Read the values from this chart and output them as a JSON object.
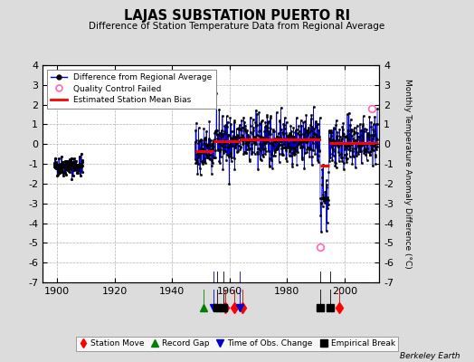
{
  "title": "LAJAS SUBSTATION PUERTO RI",
  "subtitle": "Difference of Station Temperature Data from Regional Average",
  "ylabel": "Monthly Temperature Anomaly Difference (°C)",
  "credit": "Berkeley Earth",
  "ylim": [
    -7,
    4
  ],
  "xlim": [
    1895,
    2012
  ],
  "xticks": [
    1900,
    1920,
    1940,
    1960,
    1980,
    2000
  ],
  "yticks": [
    -7,
    -6,
    -5,
    -4,
    -3,
    -2,
    -1,
    0,
    1,
    2,
    3,
    4
  ],
  "bg_color": "#dcdcdc",
  "plot_bg_color": "#ffffff",
  "grid_color": "#b0b0b0",
  "line_color": "#0000cc",
  "bias_color": "#ff0000",
  "qc_color": "#ff69b4",
  "seed": 42,
  "data_start": 1948.0,
  "data_end": 2011.5,
  "early_data_start": 1899.0,
  "early_data_end": 1909.0,
  "bias_segments": [
    {
      "start": 1948.0,
      "end": 1954.5,
      "value": -0.35
    },
    {
      "start": 1954.5,
      "end": 1963.5,
      "value": 0.15
    },
    {
      "start": 1963.5,
      "end": 1991.5,
      "value": 0.22
    },
    {
      "start": 1991.5,
      "end": 1994.5,
      "value": -1.1
    },
    {
      "start": 1994.5,
      "end": 2011.5,
      "value": 0.05
    }
  ],
  "event_markers": {
    "station_moves": [
      1958.5,
      1961.5,
      1964.5,
      1998.0
    ],
    "record_gaps": [
      1951.0
    ],
    "obs_changes": [
      1954.5,
      1963.5
    ],
    "empirical_breaks": [
      1955.5,
      1958.0,
      1991.5,
      1995.0
    ]
  },
  "qc_failed": [
    {
      "year": 1991.6,
      "value": -5.2
    },
    {
      "year": 2009.5,
      "value": 1.8
    }
  ],
  "neg_dip_start": 1991.5,
  "neg_dip_end": 1994.5,
  "neg_dip_extra": -1.5
}
